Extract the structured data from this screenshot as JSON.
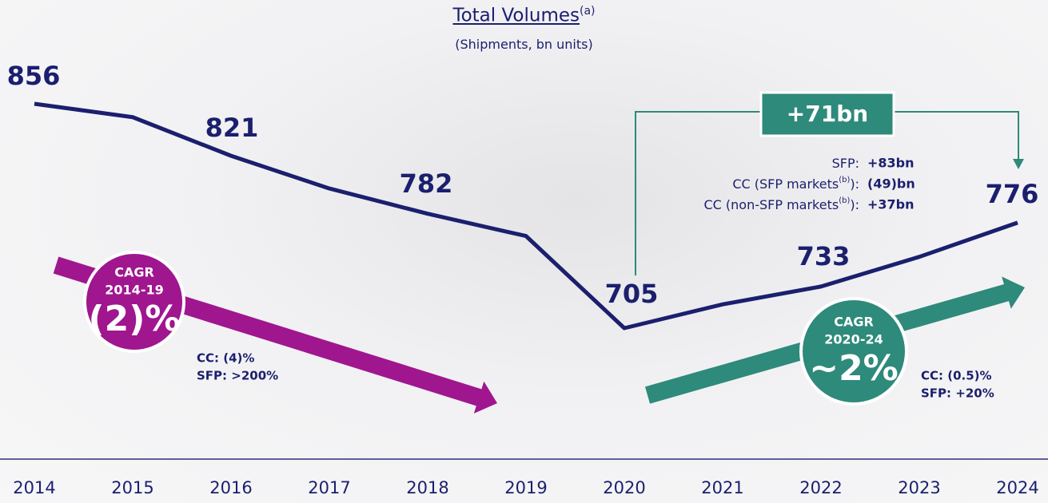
{
  "chart_data": {
    "type": "line",
    "title": "Total Volumes",
    "title_note": "(a)",
    "subtitle": "(Shipments, bn units)",
    "categories": [
      "2014",
      "2015",
      "2016",
      "2017",
      "2018",
      "2019",
      "2020",
      "2021",
      "2022",
      "2023",
      "2024"
    ],
    "values": [
      856,
      847,
      821,
      799,
      782,
      767,
      705,
      721,
      733,
      753,
      776
    ],
    "value_labels": [
      "856",
      null,
      "821",
      null,
      "782",
      null,
      "705",
      null,
      "733",
      null,
      "776"
    ],
    "color": "#1b1f6e",
    "annotations": {
      "change": {
        "total": "+71bn",
        "rows": [
          {
            "label": "SFP:",
            "value": "+83bn"
          },
          {
            "label": "CC (SFP markets",
            "note": "(b)",
            "suffix": "):",
            "value": "(49)bn"
          },
          {
            "label": "CC (non-SFP markets",
            "note": "(b)",
            "suffix": "):",
            "value": "+37bn"
          }
        ]
      },
      "cagr_first": {
        "label": "CAGR",
        "period": "2014-19",
        "value": "(2)%",
        "notes": [
          "CC: (4)%",
          "SFP: >200%"
        ],
        "color": "#a0168f"
      },
      "cagr_second": {
        "label": "CAGR",
        "period": "2020-24",
        "value": "~2%",
        "notes": [
          "CC: (0.5)%",
          "SFP: +20%"
        ],
        "color": "#2e8a7a"
      }
    }
  }
}
